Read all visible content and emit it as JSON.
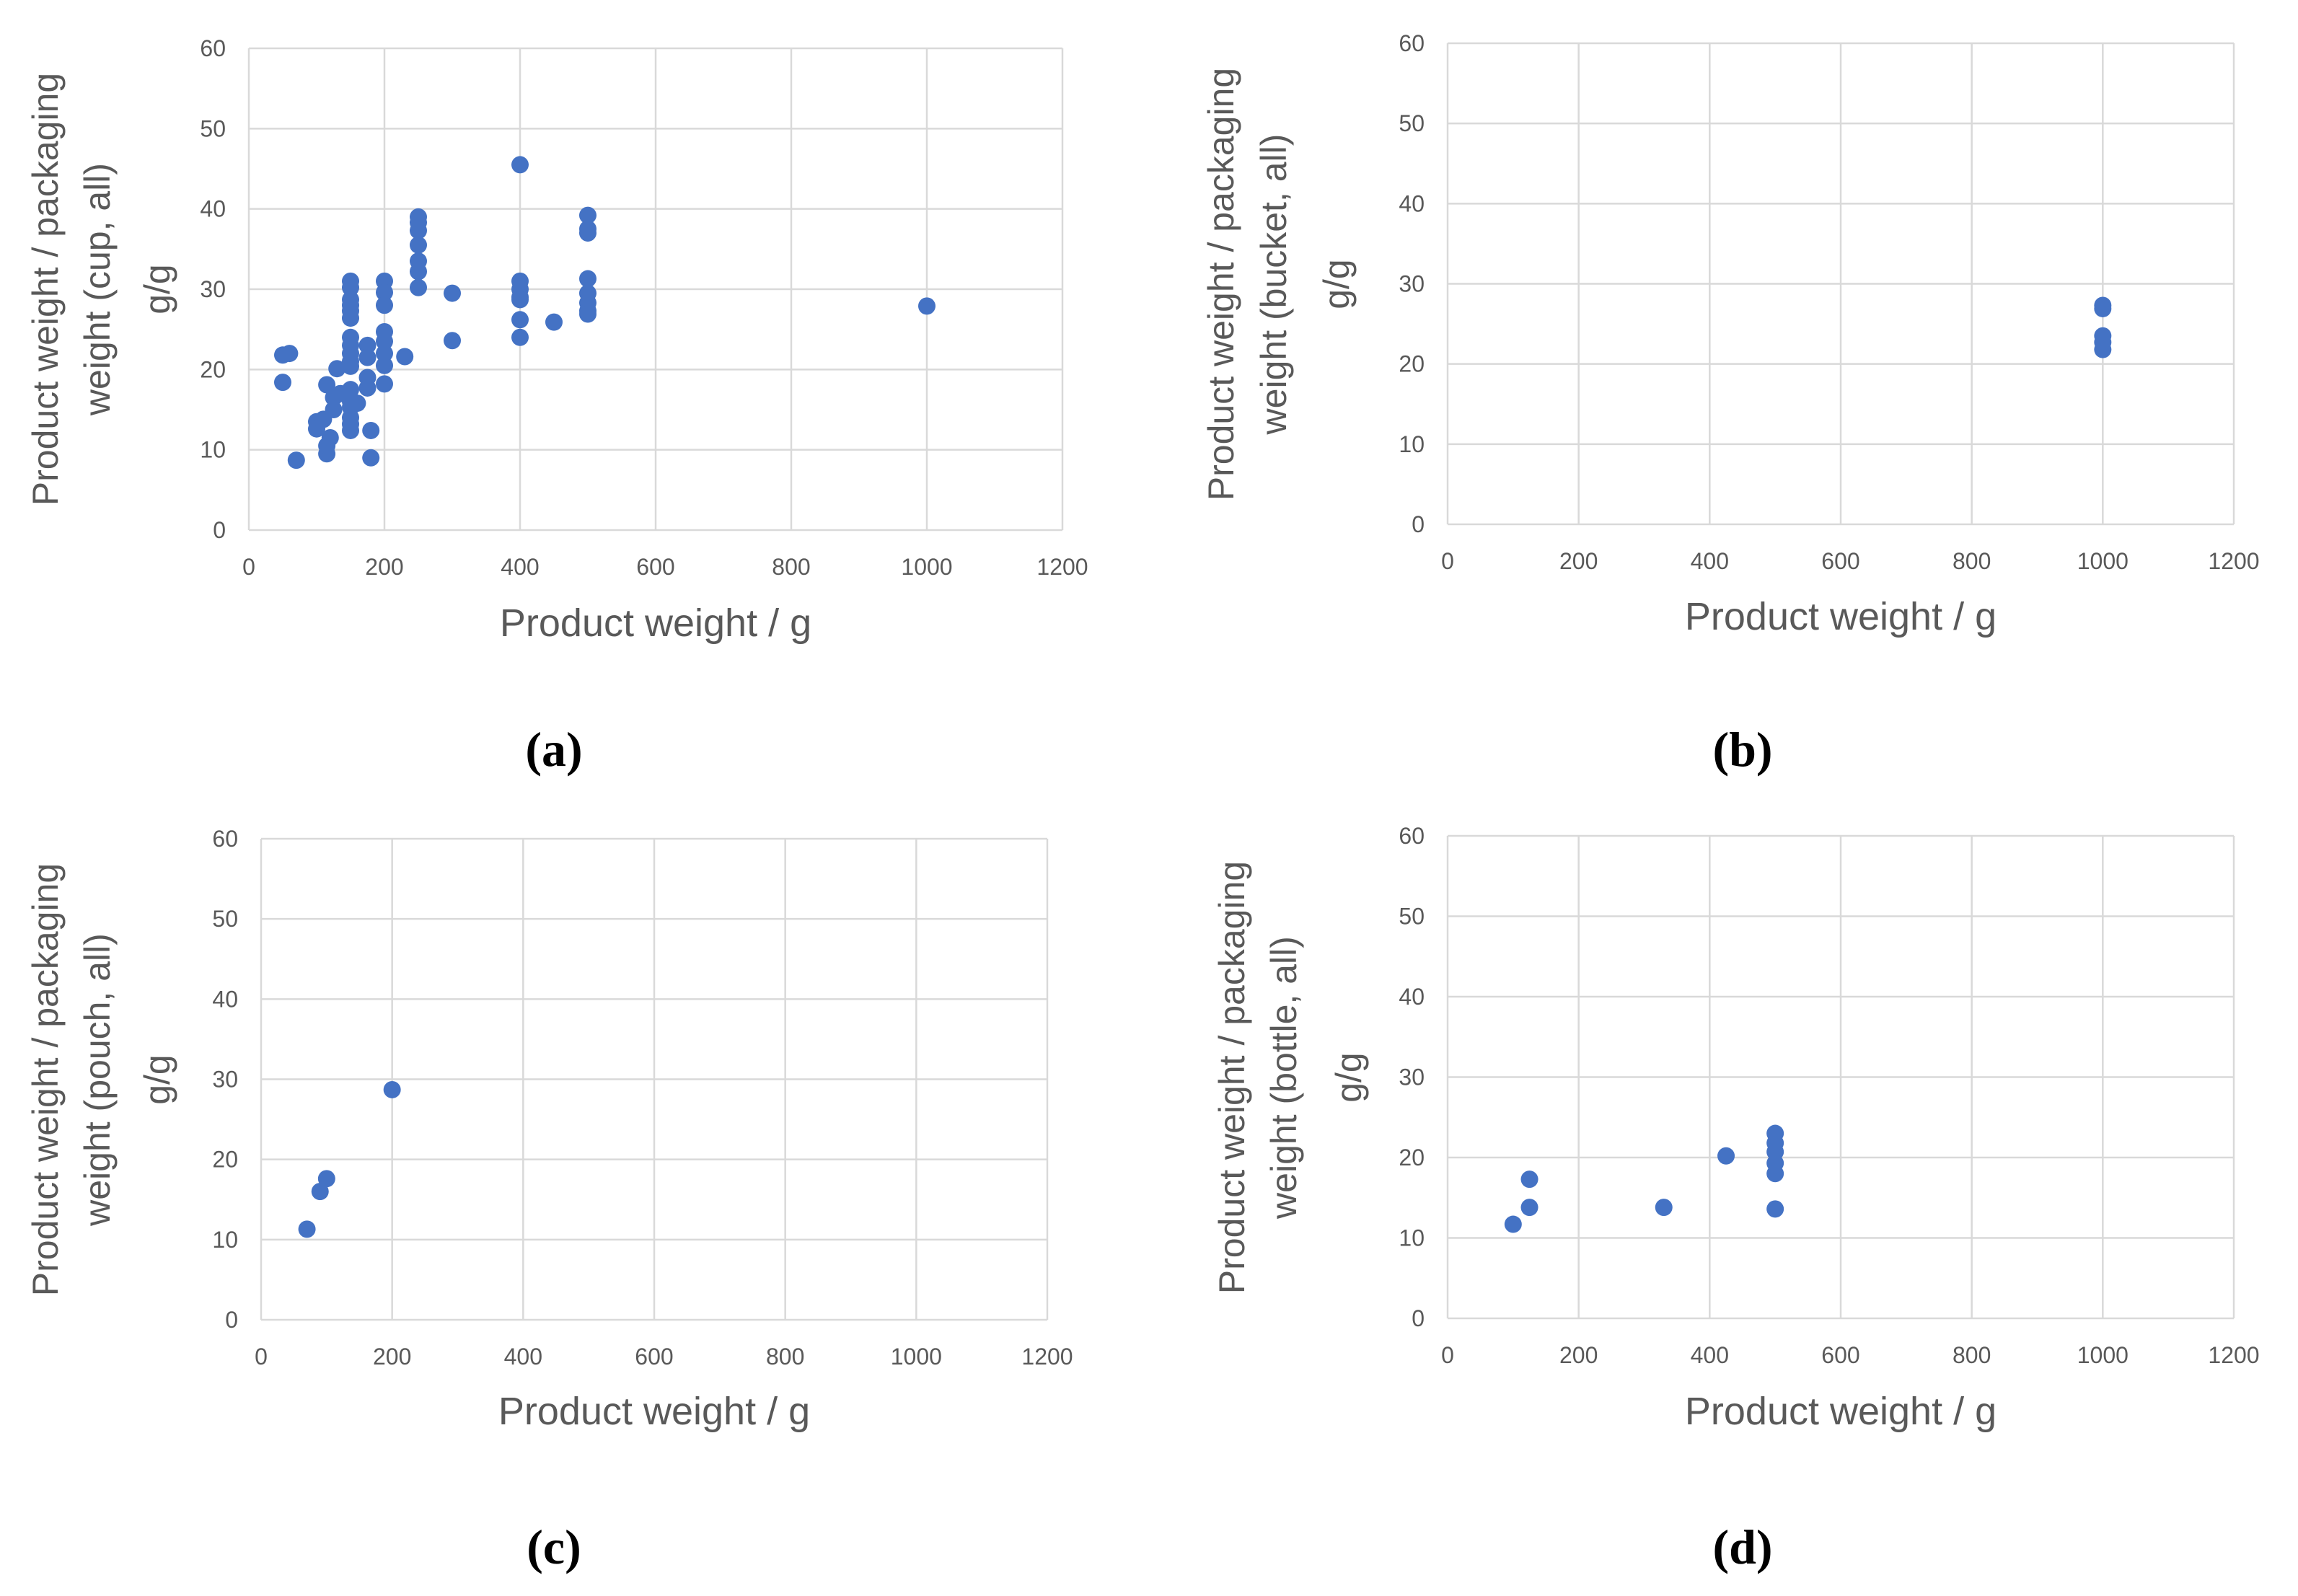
{
  "figure": {
    "panel_labels": [
      "(a)",
      "(b)",
      "(c)",
      "(d)"
    ]
  },
  "colors": {
    "marker": "#4472c4",
    "grid": "#d9d9d9",
    "tick_text": "#595959",
    "axis_title": "#595959",
    "panel_label": "#000000"
  },
  "chart_data": [
    {
      "type": "scatter",
      "panel": "a",
      "xlabel": "Product weight / g",
      "ylabel_lines": [
        "Product weight / packaging",
        "weight (cup, all)",
        "g/g"
      ],
      "xlim": [
        0,
        1200
      ],
      "ylim": [
        0,
        60
      ],
      "xticks": [
        "0",
        "200",
        "400",
        "600",
        "800",
        "1000",
        "1200"
      ],
      "yticks": [
        "0",
        "10",
        "20",
        "30",
        "40",
        "50",
        "60"
      ],
      "grid": true,
      "points": [
        [
          50,
          21.8
        ],
        [
          50,
          18.4
        ],
        [
          60,
          22
        ],
        [
          70,
          8.7
        ],
        [
          100,
          13.5
        ],
        [
          100,
          12.6
        ],
        [
          110,
          13.8
        ],
        [
          115,
          9.5
        ],
        [
          115,
          10.5
        ],
        [
          115,
          18.1
        ],
        [
          120,
          11.5
        ],
        [
          125,
          15
        ],
        [
          125,
          16.5
        ],
        [
          130,
          20.1
        ],
        [
          135,
          17
        ],
        [
          150,
          31
        ],
        [
          150,
          30.2
        ],
        [
          150,
          28.7
        ],
        [
          150,
          28
        ],
        [
          150,
          27.3
        ],
        [
          150,
          26.4
        ],
        [
          150,
          24
        ],
        [
          150,
          23
        ],
        [
          150,
          22
        ],
        [
          150,
          21
        ],
        [
          150,
          20.4
        ],
        [
          150,
          17.5
        ],
        [
          150,
          16
        ],
        [
          150,
          15.3
        ],
        [
          150,
          14
        ],
        [
          150,
          13.2
        ],
        [
          150,
          12.4
        ],
        [
          160,
          15.8
        ],
        [
          175,
          23
        ],
        [
          175,
          21.5
        ],
        [
          175,
          19
        ],
        [
          175,
          17.7
        ],
        [
          180,
          12.4
        ],
        [
          180,
          9
        ],
        [
          200,
          31
        ],
        [
          200,
          29.6
        ],
        [
          200,
          28
        ],
        [
          200,
          24.7
        ],
        [
          200,
          23.5
        ],
        [
          200,
          22
        ],
        [
          200,
          20.5
        ],
        [
          200,
          18.2
        ],
        [
          230,
          21.6
        ],
        [
          250,
          39
        ],
        [
          250,
          38.3
        ],
        [
          250,
          37.3
        ],
        [
          250,
          35.5
        ],
        [
          250,
          33.5
        ],
        [
          250,
          32.2
        ],
        [
          250,
          30.2
        ],
        [
          300,
          29.5
        ],
        [
          300,
          23.6
        ],
        [
          400,
          45.5
        ],
        [
          400,
          31
        ],
        [
          400,
          30
        ],
        [
          400,
          29
        ],
        [
          400,
          28.7
        ],
        [
          400,
          26.2
        ],
        [
          400,
          24
        ],
        [
          450,
          25.9
        ],
        [
          500,
          39.2
        ],
        [
          500,
          37.5
        ],
        [
          500,
          37
        ],
        [
          500,
          31.3
        ],
        [
          500,
          29.5
        ],
        [
          500,
          28.3
        ],
        [
          500,
          27.3
        ],
        [
          500,
          26.9
        ],
        [
          1000,
          27.9
        ]
      ]
    },
    {
      "type": "scatter",
      "panel": "b",
      "xlabel": "Product weight / g",
      "ylabel_lines": [
        "Product weight / packaging",
        "weight (bucket, all)",
        "g/g"
      ],
      "xlim": [
        0,
        1200
      ],
      "ylim": [
        0,
        60
      ],
      "xticks": [
        "0",
        "200",
        "400",
        "600",
        "800",
        "1000",
        "1200"
      ],
      "yticks": [
        "0",
        "10",
        "20",
        "30",
        "40",
        "50",
        "60"
      ],
      "grid": true,
      "points": [
        [
          1000,
          27.3
        ],
        [
          1000,
          26.9
        ],
        [
          1000,
          23.5
        ],
        [
          1000,
          22.7
        ],
        [
          1000,
          21.8
        ]
      ]
    },
    {
      "type": "scatter",
      "panel": "c",
      "xlabel": "Product weight / g",
      "ylabel_lines": [
        "Product weight / packaging",
        "weight (pouch, all)",
        "g/g"
      ],
      "xlim": [
        0,
        1200
      ],
      "ylim": [
        0,
        60
      ],
      "xticks": [
        "0",
        "200",
        "400",
        "600",
        "800",
        "1000",
        "1200"
      ],
      "yticks": [
        "0",
        "10",
        "20",
        "30",
        "40",
        "50",
        "60"
      ],
      "grid": true,
      "points": [
        [
          70,
          11.3
        ],
        [
          90,
          16
        ],
        [
          100,
          17.6
        ],
        [
          200,
          28.7
        ]
      ]
    },
    {
      "type": "scatter",
      "panel": "d",
      "xlabel": "Product weight / g",
      "ylabel_lines": [
        "Product weight / packaging",
        "weight (bottle, all)",
        "g/g"
      ],
      "xlim": [
        0,
        1200
      ],
      "ylim": [
        0,
        60
      ],
      "xticks": [
        "0",
        "200",
        "400",
        "600",
        "800",
        "1000",
        "1200"
      ],
      "yticks": [
        "0",
        "10",
        "20",
        "30",
        "40",
        "50",
        "60"
      ],
      "grid": true,
      "points": [
        [
          100,
          11.7
        ],
        [
          125,
          17.3
        ],
        [
          125,
          13.8
        ],
        [
          330,
          13.8
        ],
        [
          425,
          20.2
        ],
        [
          500,
          23
        ],
        [
          500,
          21.8
        ],
        [
          500,
          20.7
        ],
        [
          500,
          19.3
        ],
        [
          500,
          18
        ],
        [
          500,
          13.6
        ]
      ]
    }
  ]
}
